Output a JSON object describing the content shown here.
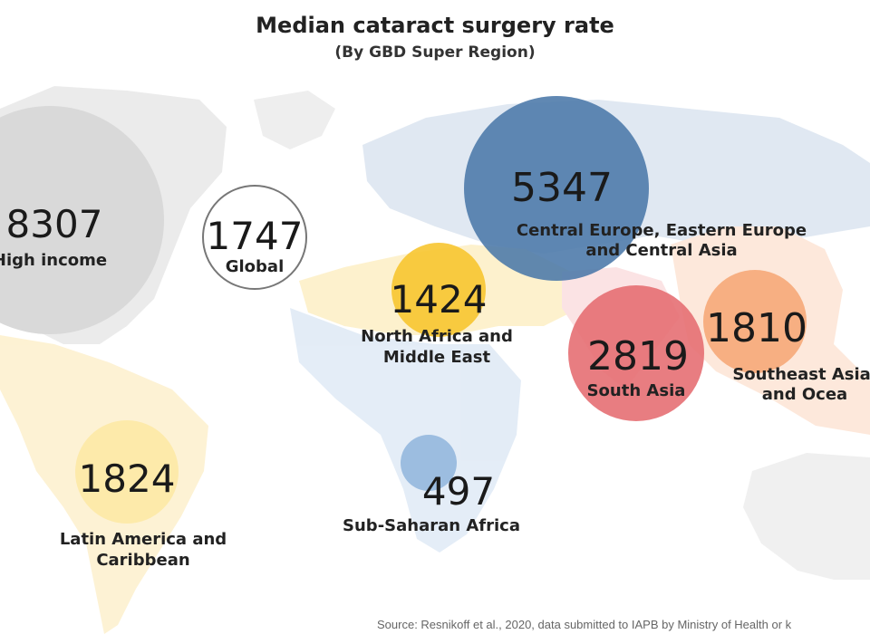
{
  "title": "Median cataract surgery rate",
  "subtitle": "(By GBD Super Region)",
  "source": "Source: Resnikoff et al., 2020, data submitted to IAPB by Ministry of Health or k",
  "chart_data": {
    "type": "bubble-map",
    "title": "Median cataract surgery rate",
    "subtitle": "(By GBD Super Region)",
    "regions": [
      {
        "name": "High income",
        "value": 8307,
        "color": "#d9d9d9"
      },
      {
        "name": "Global",
        "value": 1747,
        "color": "#ffffff"
      },
      {
        "name": "Central Europe, Eastern Europe and Central Asia",
        "value": 5347,
        "color": "#4a78a8"
      },
      {
        "name": "North Africa and Middle East",
        "value": 1424,
        "color": "#f7c530"
      },
      {
        "name": "South Asia",
        "value": 2819,
        "color": "#e56b6f"
      },
      {
        "name": "Southeast Asia, and Ocea",
        "value": 1810,
        "color": "#f6a878"
      },
      {
        "name": "Latin America and Caribbean",
        "value": 1824,
        "color": "#fde9a8"
      },
      {
        "name": "Sub-Saharan Africa",
        "value": 497,
        "color": "#8fb4dc"
      }
    ]
  }
}
